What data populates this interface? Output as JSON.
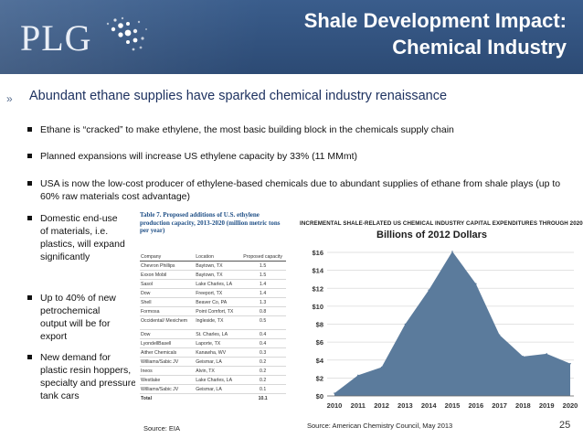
{
  "header": {
    "logo": "PLG",
    "title_line1": "Shale Development Impact:",
    "title_line2": "Chemical Industry",
    "colors": {
      "banner": "#2c4a74",
      "title": "#ffffff"
    }
  },
  "main_bullet": {
    "marker": "»",
    "text": "Abundant ethane supplies have sparked chemical industry renaissance"
  },
  "sub_bullets": [
    {
      "text": "Ethane is “cracked” to make ethylene, the most basic building block in the chemicals supply chain"
    },
    {
      "text": "Planned expansions will increase US ethylene capacity by 33% (11 MMmt)"
    },
    {
      "text": "USA is now the low-cost producer of ethylene-based chemicals due to abundant supplies of ethane from shale plays (up to 60% raw materials cost advantage)"
    },
    {
      "text": "Domestic end-use of materials, i.e. plastics, will expand significantly"
    },
    {
      "text": "Up to 40% of new petrochemical output will be for export"
    },
    {
      "text": "New demand for plastic resin hoppers, specialty and pressure tank cars"
    }
  ],
  "table": {
    "title": "Table 7. Proposed additions of U.S. ethylene production capacity, 2013-2020 (million metric tons per year)",
    "headers": [
      "Company",
      "Location",
      "Proposed capacity"
    ],
    "rows": [
      [
        "Chevron Phillips",
        "Baytown, TX",
        "1.5"
      ],
      [
        "Exxon Mobil",
        "Baytown, TX",
        "1.5"
      ],
      [
        "Sasol",
        "Lake Charles, LA",
        "1.4"
      ],
      [
        "Dow",
        "Freeport, TX",
        "1.4"
      ],
      [
        "Shell",
        "Beaver Co, PA",
        "1.3"
      ],
      [
        "Formosa",
        "Point Comfort, TX",
        "0.8"
      ],
      [
        "Occidental/ Mexichem",
        "Ingleside, TX",
        "0.5"
      ],
      [
        "Dow",
        "St. Charles, LA",
        "0.4"
      ],
      [
        "LyondellBasell",
        "Laporte, TX",
        "0.4"
      ],
      [
        "Aither Chemicals",
        "Kanawha, WV",
        "0.3"
      ],
      [
        "Williams/Sabic JV",
        "Geismar, LA",
        "0.2"
      ],
      [
        "Ineos",
        "Alvin, TX",
        "0.2"
      ],
      [
        "Westlake",
        "Lake Charles, LA",
        "0.2"
      ],
      [
        "Williams/Sabic JV",
        "Geismar, LA",
        "0.1"
      ]
    ],
    "total_label": "Total",
    "total_value": "10.1",
    "source": "Source:  EIA"
  },
  "chart_data": {
    "type": "area",
    "title": "INCREMENTAL SHALE-RELATED US CHEMICAL INDUSTRY CAPITAL EXPENDITURES THROUGH 2020",
    "subtitle": "Billions of 2012 Dollars",
    "x": [
      "2010",
      "2011",
      "2012",
      "2013",
      "2014",
      "2015",
      "2016",
      "2017",
      "2018",
      "2019",
      "2020"
    ],
    "values": [
      0.3,
      2.3,
      3.2,
      8.0,
      11.8,
      16.1,
      12.5,
      6.8,
      4.4,
      4.7,
      3.6
    ],
    "yticks": [
      "$0",
      "$2",
      "$4",
      "$6",
      "$8",
      "$10",
      "$12",
      "$14",
      "$16"
    ],
    "ylim": [
      0,
      16
    ],
    "grid": true,
    "color": "#5b7b9c",
    "source": "Source:  American Chemistry Council, May 2013"
  },
  "page_number": "25"
}
